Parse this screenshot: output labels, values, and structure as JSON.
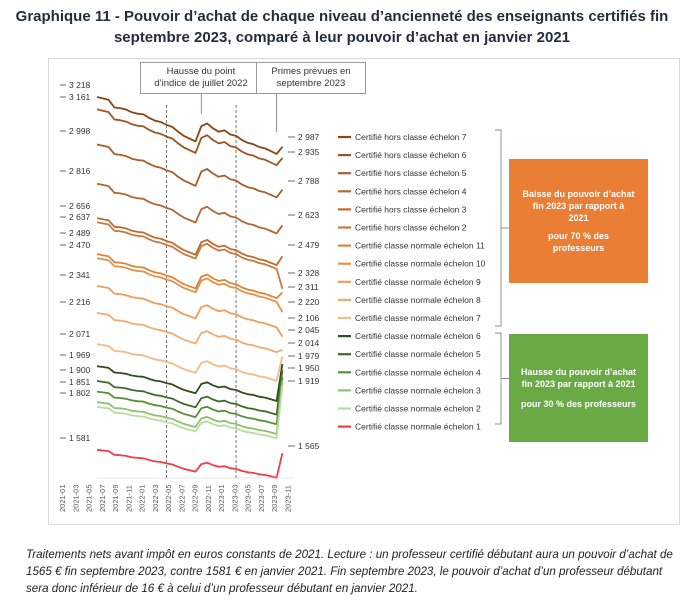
{
  "title": {
    "line1": "Graphique 11 - Pouvoir d’achat de chaque niveau d’ancienneté des enseignants certifiés fin",
    "line2": "septembre 2023, comparé à leur pouvoir d’achat en janvier 2021"
  },
  "callouts": {
    "point_indice": [
      "Hausse du point",
      "d’indice de juillet 2022"
    ],
    "primes": [
      "Primes prévues en",
      "septembre 2023"
    ]
  },
  "summary_boxes": {
    "baisse": {
      "color": "#ea7e34",
      "lines": [
        "Baisse du pouvoir d’achat",
        "fin 2023 par rapport à",
        "2021",
        "pour 70 % des",
        "professeurs"
      ]
    },
    "hausse": {
      "color": "#6aaa45",
      "lines": [
        "Hausse du pouvoir d’achat",
        "fin 2023 par rapport à 2021",
        "pour 30 % des professeurs"
      ]
    }
  },
  "caption": "Traitements nets avant impôt en euros constants de 2021. Lecture : un professeur certifié débutant aura un pouvoir d’achat de 1565 € fin septembre 2023, contre 1581 € en janvier 2021. Fin septembre 2023, le pouvoir d’achat d’un professeur débutant sera donc inférieur de 16 € à celui d’un professeur débutant en janvier 2021.",
  "chart_data": {
    "type": "line",
    "title": "Pouvoir d’achat de chaque niveau d’ancienneté des enseignants certifiés",
    "xlabel": "",
    "ylabel": "",
    "x": [
      "2021-01",
      "2021-02",
      "2021-03",
      "2021-04",
      "2021-05",
      "2021-06",
      "2021-07",
      "2021-08",
      "2021-09",
      "2021-10",
      "2021-11",
      "2021-12",
      "2022-01",
      "2022-02",
      "2022-03",
      "2022-04",
      "2022-05",
      "2022-06",
      "2022-07",
      "2022-08",
      "2022-09",
      "2022-10",
      "2022-11",
      "2022-12",
      "2023-01",
      "2023-02",
      "2023-03",
      "2023-04",
      "2023-05",
      "2023-06",
      "2023-07",
      "2023-08",
      "2023-09",
      "2023-10",
      "2023-11"
    ],
    "x_tick_labels": [
      "2021-01",
      "2021-03",
      "2021-05",
      "2021-07",
      "2021-09",
      "2021-11",
      "2022-01",
      "2022-03",
      "2022-05",
      "2022-07",
      "2022-09",
      "2022-11",
      "2023-01",
      "2023-03",
      "2023-05",
      "2023-07",
      "2023-09",
      "2023-11"
    ],
    "ylim": [
      1450,
      3260
    ],
    "start_labels": [
      "3 218",
      "3 161",
      "2 998",
      "2 816",
      "2 656",
      "2 637",
      "2 489",
      "2 470",
      "2 341",
      "2 216",
      "2 071",
      "1 969",
      "1 900",
      "1 851",
      "1 802",
      "1 581"
    ],
    "end_labels": [
      "2 987",
      "2 935",
      "2 788",
      "2 623",
      "2 479",
      "2 328",
      "2 311",
      "2 220",
      "2 106",
      "2 045",
      "2 014",
      "1 979",
      "1 950",
      "1 919",
      "1 565"
    ],
    "series": [
      {
        "name": "Certifié hors classe échelon 7",
        "color": "#8b4513",
        "start": 3218,
        "end": 2987
      },
      {
        "name": "Certifié hors classe échelon 6",
        "color": "#9b5523",
        "start": 3161,
        "end": 2935
      },
      {
        "name": "Certifié hors classe échelon 5",
        "color": "#a85d2a",
        "start": 2998,
        "end": 2788
      },
      {
        "name": "Certifié hors classe échelon 4",
        "color": "#b5652f",
        "start": 2816,
        "end": 2623
      },
      {
        "name": "Certifié hors classe échelon 3",
        "color": "#c06a30",
        "start": 2656,
        "end": 2479
      },
      {
        "name": "Certifié hors classe échelon 2",
        "color": "#c87a3a",
        "start": 2637,
        "end": 2328
      },
      {
        "name": "Certifié classe normale échelon 11",
        "color": "#e0843a",
        "start": 2489,
        "end": 2311
      },
      {
        "name": "Certifié classe normale échelon 10",
        "color": "#e98f45",
        "start": 2470,
        "end": 2220
      },
      {
        "name": "Certifié classe normale échelon 9",
        "color": "#ee9c5a",
        "start": 2341,
        "end": 2106
      },
      {
        "name": "Certifié classe normale échelon 8",
        "color": "#f1aa70",
        "start": 2216,
        "end": 2045
      },
      {
        "name": "Certifié classe normale échelon 7",
        "color": "#f4b988",
        "start": 2071,
        "end": 2014
      },
      {
        "name": "Certifié classe normale échelon 6",
        "color": "#2f4f1f",
        "start": 1969,
        "end": 1979
      },
      {
        "name": "Certifié classe normale échelon 5",
        "color": "#3f6b2a",
        "start": 1900,
        "end": 1950
      },
      {
        "name": "Certifié classe normale échelon 4",
        "color": "#5a8f3a",
        "start": 1851,
        "end": 1919
      },
      {
        "name": "Certifié classe normale échelon 3",
        "color": "#8fc06a",
        "start": 1802,
        "end": 1900
      },
      {
        "name": "Certifié classe normale échelon 2",
        "color": "#b9dca0",
        "start": 1780,
        "end": 1880
      },
      {
        "name": "Certifié classe normale échelon 1",
        "color": "#ef3d4a",
        "start": 1581,
        "end": 1565
      }
    ]
  }
}
